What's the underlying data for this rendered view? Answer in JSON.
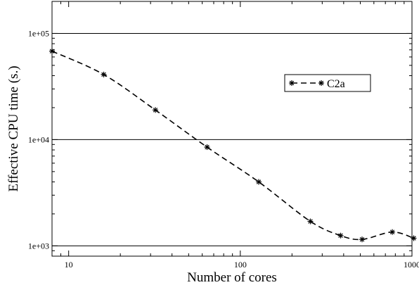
{
  "chart_data": {
    "type": "line",
    "title": "",
    "xlabel": "Number of cores",
    "ylabel": "Effective CPU time (s.)",
    "xscale": "log",
    "yscale": "log",
    "xlim": [
      8,
      1000
    ],
    "ylim": [
      800,
      200000
    ],
    "x_ticks": [
      10,
      100,
      1000
    ],
    "x_tick_labels": [
      "10",
      "100",
      "1000"
    ],
    "y_ticks": [
      1000,
      10000,
      100000
    ],
    "y_tick_labels": [
      "1e+03",
      "1e+04",
      "1e+05"
    ],
    "grid": "horizontal at major y ticks",
    "legend_position": "top-right",
    "series": [
      {
        "name": "C2a",
        "line_style": "dashed",
        "marker": "asterisk",
        "color": "#000000",
        "x": [
          8,
          16,
          32,
          64,
          128,
          256,
          384,
          512,
          768,
          1024
        ],
        "y": [
          68000,
          41000,
          19000,
          8500,
          4000,
          1700,
          1250,
          1150,
          1350,
          1180
        ]
      }
    ]
  }
}
